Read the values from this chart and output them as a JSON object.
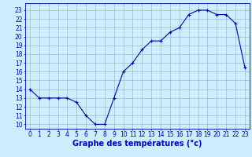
{
  "x_data": [
    0,
    1,
    2,
    3,
    4,
    5,
    6,
    7,
    8,
    9,
    10,
    11,
    12,
    13,
    14,
    15,
    16,
    17,
    18,
    19,
    20,
    21,
    22,
    23
  ],
  "y_data": [
    14,
    13,
    13,
    13,
    13,
    12.5,
    11,
    10,
    10,
    13,
    16,
    17,
    18.5,
    19.5,
    19.5,
    20.5,
    21,
    22.5,
    23,
    23,
    22.5,
    22.5,
    21.5,
    16.5
  ],
  "ylim": [
    9.5,
    23.8
  ],
  "xlim": [
    -0.5,
    23.5
  ],
  "yticks": [
    10,
    11,
    12,
    13,
    14,
    15,
    16,
    17,
    18,
    19,
    20,
    21,
    22,
    23
  ],
  "xticks": [
    0,
    1,
    2,
    3,
    4,
    5,
    6,
    7,
    8,
    9,
    10,
    11,
    12,
    13,
    14,
    15,
    16,
    17,
    18,
    19,
    20,
    21,
    22,
    23
  ],
  "line_color": "#0000cc",
  "marker": "+",
  "markersize": 3,
  "linewidth": 0.8,
  "bg_color": "#cceeff",
  "grid_color": "#99bbcc",
  "xlabel": "Graphe des températures (°c)",
  "tick_color": "#0000cc",
  "spine_color": "#0000cc",
  "tick_fontsize": 5.5,
  "xlabel_fontsize": 7
}
